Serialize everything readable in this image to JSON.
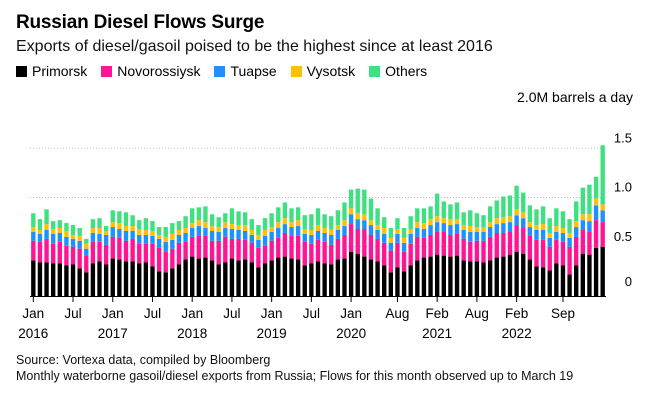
{
  "header": {
    "title": "Russian Diesel Flows Surge",
    "subtitle": "Exports of diesel/gasoil poised to be the highest since at least 2016"
  },
  "legend": [
    {
      "label": "Primorsk",
      "color": "#000000"
    },
    {
      "label": "Novorossiysk",
      "color": "#ff1493"
    },
    {
      "label": "Tuapse",
      "color": "#1e90ff"
    },
    {
      "label": "Vysotsk",
      "color": "#ffc107"
    },
    {
      "label": "Others",
      "color": "#3ee07f"
    }
  ],
  "unit_label": "2.0M barrels a day",
  "footer": {
    "source": "Source: Vortexa data, compiled by Bloomberg",
    "note": "Monthly waterborne gasoil/diesel exports from Russia; Flows for this month observed up to March 19"
  },
  "chart_data": {
    "type": "bar",
    "stacked": true,
    "title": "Russian Diesel Flows Surge",
    "ylabel": "M barrels a day",
    "ylim": [
      0,
      2.0
    ],
    "y_ticks": [
      {
        "value": 0.5,
        "label": "0.5"
      },
      {
        "value": 1.0,
        "label": "1.0"
      },
      {
        "value": 1.5,
        "label": "1.5"
      }
    ],
    "y_zero_label": "0",
    "categories": [
      "Jan 2016",
      "Feb 2016",
      "Mar 2016",
      "Apr 2016",
      "May 2016",
      "Jun 2016",
      "Jul 2016",
      "Aug 2016",
      "Sep 2016",
      "Oct 2016",
      "Nov 2016",
      "Dec 2016",
      "Jan 2017",
      "Feb 2017",
      "Mar 2017",
      "Apr 2017",
      "May 2017",
      "Jun 2017",
      "Jul 2017",
      "Aug 2017",
      "Sep 2017",
      "Oct 2017",
      "Nov 2017",
      "Dec 2017",
      "Jan 2018",
      "Feb 2018",
      "Mar 2018",
      "Apr 2018",
      "May 2018",
      "Jun 2018",
      "Jul 2018",
      "Aug 2018",
      "Sep 2018",
      "Oct 2018",
      "Nov 2018",
      "Dec 2018",
      "Jan 2019",
      "Feb 2019",
      "Mar 2019",
      "Apr 2019",
      "May 2019",
      "Jun 2019",
      "Jul 2019",
      "Aug 2019",
      "Sep 2019",
      "Oct 2019",
      "Nov 2019",
      "Dec 2019",
      "Jan 2020",
      "Feb 2020",
      "Mar 2020",
      "Apr 2020",
      "May 2020",
      "Jun 2020",
      "Jul 2020",
      "Aug 2020",
      "Sep 2020",
      "Oct 2020",
      "Nov 2020",
      "Dec 2020",
      "Jan 2021",
      "Feb 2021",
      "Mar 2021",
      "Apr 2021",
      "May 2021",
      "Jun 2021",
      "Jul 2021",
      "Aug 2021",
      "Sep 2021",
      "Oct 2021",
      "Nov 2021",
      "Dec 2021",
      "Jan 2022",
      "Feb 2022",
      "Mar 2022",
      "Apr 2022",
      "May 2022",
      "Jun 2022",
      "Jul 2022",
      "Aug 2022",
      "Sep 2022",
      "Oct 2022",
      "Nov 2022",
      "Dec 2022",
      "Jan 2023",
      "Feb 2023",
      "Mar 2023"
    ],
    "x_labels": [
      {
        "index": 0,
        "month": "Jan",
        "year": "2016"
      },
      {
        "index": 6,
        "month": "Jul",
        "year": ""
      },
      {
        "index": 12,
        "month": "Jan",
        "year": "2017"
      },
      {
        "index": 18,
        "month": "Jul",
        "year": ""
      },
      {
        "index": 24,
        "month": "Jan",
        "year": "2018"
      },
      {
        "index": 30,
        "month": "Jul",
        "year": ""
      },
      {
        "index": 36,
        "month": "Jan",
        "year": "2019"
      },
      {
        "index": 42,
        "month": "Jul",
        "year": ""
      },
      {
        "index": 48,
        "month": "Jan",
        "year": "2020"
      },
      {
        "index": 55,
        "month": "Aug",
        "year": ""
      },
      {
        "index": 61,
        "month": "Feb",
        "year": "2021"
      },
      {
        "index": 67,
        "month": "Aug",
        "year": ""
      },
      {
        "index": 73,
        "month": "Feb",
        "year": "2022"
      },
      {
        "index": 80,
        "month": "Sep",
        "year": ""
      }
    ],
    "series": [
      {
        "name": "Primorsk",
        "color": "#000000",
        "values": [
          0.36,
          0.34,
          0.34,
          0.33,
          0.33,
          0.31,
          0.32,
          0.28,
          0.24,
          0.33,
          0.35,
          0.32,
          0.38,
          0.37,
          0.35,
          0.35,
          0.33,
          0.34,
          0.3,
          0.25,
          0.24,
          0.28,
          0.32,
          0.37,
          0.4,
          0.38,
          0.39,
          0.36,
          0.32,
          0.34,
          0.38,
          0.36,
          0.37,
          0.34,
          0.29,
          0.33,
          0.36,
          0.39,
          0.4,
          0.38,
          0.37,
          0.31,
          0.33,
          0.35,
          0.33,
          0.32,
          0.37,
          0.38,
          0.45,
          0.43,
          0.4,
          0.37,
          0.35,
          0.31,
          0.24,
          0.29,
          0.25,
          0.31,
          0.36,
          0.39,
          0.4,
          0.42,
          0.41,
          0.4,
          0.41,
          0.36,
          0.35,
          0.35,
          0.34,
          0.36,
          0.39,
          0.4,
          0.42,
          0.45,
          0.43,
          0.37,
          0.3,
          0.29,
          0.26,
          0.33,
          0.31,
          0.22,
          0.31,
          0.43,
          0.42,
          0.49,
          0.5
        ]
      },
      {
        "name": "Novorossiysk",
        "color": "#ff1493",
        "values": [
          0.2,
          0.21,
          0.24,
          0.2,
          0.22,
          0.2,
          0.18,
          0.2,
          0.17,
          0.22,
          0.2,
          0.2,
          0.22,
          0.22,
          0.21,
          0.23,
          0.2,
          0.19,
          0.23,
          0.24,
          0.21,
          0.2,
          0.22,
          0.18,
          0.2,
          0.23,
          0.22,
          0.2,
          0.24,
          0.26,
          0.2,
          0.22,
          0.2,
          0.2,
          0.2,
          0.18,
          0.2,
          0.2,
          0.24,
          0.23,
          0.24,
          0.24,
          0.2,
          0.22,
          0.22,
          0.2,
          0.21,
          0.24,
          0.28,
          0.25,
          0.28,
          0.25,
          0.23,
          0.23,
          0.22,
          0.25,
          0.2,
          0.22,
          0.24,
          0.2,
          0.22,
          0.23,
          0.24,
          0.22,
          0.22,
          0.22,
          0.2,
          0.21,
          0.22,
          0.24,
          0.25,
          0.24,
          0.23,
          0.27,
          0.26,
          0.24,
          0.27,
          0.28,
          0.24,
          0.24,
          0.24,
          0.28,
          0.29,
          0.24,
          0.23,
          0.28,
          0.25
        ]
      },
      {
        "name": "Tuapse",
        "color": "#1e90ff",
        "values": [
          0.09,
          0.08,
          0.09,
          0.1,
          0.09,
          0.09,
          0.08,
          0.08,
          0.07,
          0.09,
          0.08,
          0.1,
          0.1,
          0.09,
          0.1,
          0.08,
          0.09,
          0.09,
          0.08,
          0.09,
          0.1,
          0.09,
          0.08,
          0.09,
          0.09,
          0.1,
          0.08,
          0.1,
          0.09,
          0.09,
          0.1,
          0.09,
          0.09,
          0.08,
          0.08,
          0.1,
          0.09,
          0.1,
          0.09,
          0.09,
          0.1,
          0.08,
          0.09,
          0.09,
          0.09,
          0.1,
          0.09,
          0.09,
          0.1,
          0.1,
          0.09,
          0.1,
          0.09,
          0.09,
          0.08,
          0.09,
          0.09,
          0.1,
          0.09,
          0.09,
          0.1,
          0.1,
          0.09,
          0.1,
          0.1,
          0.09,
          0.1,
          0.09,
          0.09,
          0.1,
          0.09,
          0.1,
          0.1,
          0.1,
          0.1,
          0.09,
          0.1,
          0.1,
          0.09,
          0.08,
          0.09,
          0.09,
          0.1,
          0.1,
          0.11,
          0.15,
          0.12
        ]
      },
      {
        "name": "Vysotsk",
        "color": "#ffc107",
        "values": [
          0.05,
          0.04,
          0.06,
          0.05,
          0.05,
          0.06,
          0.04,
          0.05,
          0.05,
          0.05,
          0.06,
          0.04,
          0.05,
          0.06,
          0.05,
          0.05,
          0.06,
          0.05,
          0.05,
          0.04,
          0.05,
          0.06,
          0.05,
          0.05,
          0.05,
          0.06,
          0.06,
          0.05,
          0.05,
          0.06,
          0.05,
          0.05,
          0.06,
          0.05,
          0.05,
          0.06,
          0.05,
          0.06,
          0.06,
          0.05,
          0.06,
          0.05,
          0.05,
          0.06,
          0.05,
          0.06,
          0.05,
          0.06,
          0.06,
          0.06,
          0.06,
          0.05,
          0.05,
          0.06,
          0.05,
          0.05,
          0.05,
          0.05,
          0.06,
          0.06,
          0.06,
          0.06,
          0.05,
          0.06,
          0.05,
          0.05,
          0.06,
          0.05,
          0.05,
          0.05,
          0.06,
          0.06,
          0.06,
          0.06,
          0.06,
          0.05,
          0.05,
          0.06,
          0.05,
          0.06,
          0.05,
          0.05,
          0.06,
          0.06,
          0.07,
          0.07,
          0.06
        ]
      },
      {
        "name": "Others",
        "color": "#3ee07f",
        "values": [
          0.14,
          0.11,
          0.15,
          0.08,
          0.08,
          0.08,
          0.1,
          0.08,
          0.05,
          0.09,
          0.1,
          0.05,
          0.12,
          0.12,
          0.14,
          0.11,
          0.09,
          0.12,
          0.1,
          0.08,
          0.1,
          0.11,
          0.09,
          0.12,
          0.15,
          0.13,
          0.16,
          0.12,
          0.1,
          0.09,
          0.16,
          0.14,
          0.13,
          0.11,
          0.1,
          0.12,
          0.14,
          0.15,
          0.16,
          0.14,
          0.13,
          0.14,
          0.16,
          0.17,
          0.14,
          0.13,
          0.15,
          0.18,
          0.19,
          0.25,
          0.25,
          0.22,
          0.17,
          0.11,
          0.1,
          0.11,
          0.1,
          0.13,
          0.14,
          0.15,
          0.13,
          0.23,
          0.17,
          0.15,
          0.17,
          0.13,
          0.16,
          0.14,
          0.12,
          0.16,
          0.18,
          0.21,
          0.21,
          0.24,
          0.2,
          0.17,
          0.16,
          0.18,
          0.15,
          0.18,
          0.17,
          0.14,
          0.2,
          0.27,
          0.3,
          0.22,
          0.6
        ]
      }
    ]
  }
}
